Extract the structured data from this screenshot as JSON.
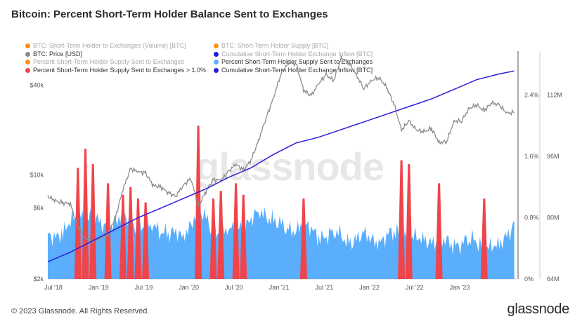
{
  "title": "Bitcoin: Percent Short-Term Holder Balance Sent to Exchanges",
  "watermark": "glassnode",
  "footer": {
    "copyright": "© 2023 Glassnode. All Rights Reserved.",
    "brand": "glassnode"
  },
  "legend": [
    {
      "label": "BTC: Short-Term Holder to Exchanges (Volume) [BTC]",
      "color": "#f7931a",
      "faded": true
    },
    {
      "label": "BTC: Short-Term Holder Supply [BTC]",
      "color": "#f7931a",
      "faded": true
    },
    {
      "label": "BTC: Price [USD]",
      "color": "#8c8c8c",
      "faded": false
    },
    {
      "label": "Cumulative Short-Term Holder Exchange Inflow [BTC]",
      "color": "#1d1de0",
      "faded": true
    },
    {
      "label": "Percent Short-Term Holder Supply Sent to Exchanges",
      "color": "#f7931a",
      "faded": true
    },
    {
      "label": "Percent Short-Term Holder Supply Sent to Exchanges",
      "color": "#5aaefc",
      "faded": false
    },
    {
      "label": "Percent Short-Term Holder Supply Sent to Exchanges > 1.0%",
      "color": "#f0444b",
      "faded": false
    },
    {
      "label": "Cumulative Short-Term Holder Exchange Inflow [BTC]",
      "color": "#2a1ed8",
      "faded": false
    }
  ],
  "chart_data": {
    "type": "area",
    "x_ticks": [
      "Jul '18",
      "Jan '19",
      "Jul '19",
      "Jan '20",
      "Jul '20",
      "Jan '21",
      "Jul '21",
      "Jan '22",
      "Jul '22",
      "Jan '23"
    ],
    "left_axis": {
      "label": "BTC: Price [USD]",
      "scale": "log",
      "ticks": [
        "$2k",
        "$6k",
        "$10k",
        "$40k"
      ]
    },
    "right_axis_pct": {
      "ticks": [
        "0%",
        "0.8%",
        "1.6%",
        "2.4%"
      ],
      "range": [
        0,
        3.0
      ]
    },
    "right_axis_cum": {
      "ticks": [
        "64M",
        "80M",
        "96M",
        "112M"
      ],
      "range": [
        64,
        124
      ]
    },
    "threshold_pct": 1.0,
    "series": [
      {
        "name": "BTC: Price [USD]",
        "color": "#8c8c8c",
        "x_dates": [
          "2018-07",
          "2018-08",
          "2018-09",
          "2018-10",
          "2018-11",
          "2018-12",
          "2019-01",
          "2019-02",
          "2019-03",
          "2019-04",
          "2019-05",
          "2019-06",
          "2019-07",
          "2019-08",
          "2019-09",
          "2019-10",
          "2019-11",
          "2019-12",
          "2020-01",
          "2020-02",
          "2020-03",
          "2020-04",
          "2020-05",
          "2020-06",
          "2020-07",
          "2020-08",
          "2020-09",
          "2020-10",
          "2020-11",
          "2020-12",
          "2021-01",
          "2021-02",
          "2021-03",
          "2021-04",
          "2021-05",
          "2021-06",
          "2021-07",
          "2021-08",
          "2021-09",
          "2021-10",
          "2021-11",
          "2021-12",
          "2022-01",
          "2022-02",
          "2022-03",
          "2022-04",
          "2022-05",
          "2022-06",
          "2022-07",
          "2022-08",
          "2022-09",
          "2022-10",
          "2022-11",
          "2022-12",
          "2023-01",
          "2023-02",
          "2023-03",
          "2023-04",
          "2023-05",
          "2023-06",
          "2023-07",
          "2023-08",
          "2023-09"
        ],
        "values": [
          7200,
          6700,
          6500,
          6400,
          4500,
          3700,
          3600,
          3800,
          4000,
          5200,
          8000,
          11000,
          10500,
          10300,
          8500,
          8300,
          7600,
          7200,
          8500,
          9500,
          6200,
          7700,
          9300,
          9200,
          10500,
          11800,
          10800,
          12500,
          17000,
          24000,
          33000,
          48000,
          57000,
          56000,
          37000,
          34000,
          41000,
          47000,
          43000,
          61000,
          57000,
          47000,
          38000,
          43000,
          45000,
          39000,
          30000,
          20000,
          23000,
          20000,
          19500,
          20500,
          16500,
          16700,
          23000,
          23000,
          28000,
          29500,
          27000,
          30500,
          29500,
          26000,
          26300
        ]
      },
      {
        "name": "Cumulative Short-Term Holder Exchange Inflow [BTC]",
        "color": "#2a1ed8",
        "unit": "M",
        "x_dates": [
          "2018-07",
          "2018-10",
          "2019-01",
          "2019-04",
          "2019-07",
          "2019-10",
          "2020-01",
          "2020-04",
          "2020-07",
          "2020-10",
          "2021-01",
          "2021-04",
          "2021-07",
          "2021-10",
          "2022-01",
          "2022-04",
          "2022-07",
          "2022-10",
          "2023-01",
          "2023-04",
          "2023-07",
          "2023-09"
        ],
        "values": [
          68.5,
          71,
          74,
          77,
          80,
          82.5,
          85,
          87.5,
          90.5,
          93,
          96.5,
          99.5,
          101,
          103,
          105,
          107,
          109,
          111,
          113.5,
          116,
          117.5,
          118.3
        ]
      },
      {
        "name": "Percent Short-Term Holder Supply Sent to Exchanges",
        "color": "#5aaefc",
        "unit": "%",
        "x_dates": [
          "2018-07",
          "2018-09",
          "2018-11",
          "2019-01",
          "2019-03",
          "2019-05",
          "2019-07",
          "2019-09",
          "2019-11",
          "2020-01",
          "2020-03",
          "2020-05",
          "2020-07",
          "2020-09",
          "2020-11",
          "2021-01",
          "2021-03",
          "2021-05",
          "2021-07",
          "2021-09",
          "2021-11",
          "2022-01",
          "2022-03",
          "2022-05",
          "2022-07",
          "2022-09",
          "2022-11",
          "2023-01",
          "2023-03",
          "2023-05",
          "2023-07",
          "2023-09"
        ],
        "values": [
          0.55,
          0.6,
          0.85,
          0.75,
          0.7,
          0.8,
          0.72,
          0.65,
          0.62,
          0.55,
          0.9,
          0.65,
          0.6,
          0.7,
          0.85,
          0.8,
          0.6,
          0.72,
          0.55,
          0.6,
          0.5,
          0.55,
          0.5,
          0.6,
          0.55,
          0.5,
          0.5,
          0.45,
          0.5,
          0.45,
          0.4,
          0.75
        ]
      },
      {
        "name": "Percent Short-Term Holder Supply Sent to Exchanges > 1.0%",
        "color": "#f0444b",
        "unit": "%",
        "x_dates": [
          "2018-11",
          "2018-12",
          "2019-01",
          "2019-03",
          "2019-05",
          "2019-06",
          "2019-07",
          "2019-08",
          "2020-03",
          "2020-05",
          "2020-06",
          "2020-08",
          "2020-09",
          "2021-05",
          "2022-06",
          "2022-07",
          "2022-11",
          "2023-05"
        ],
        "values": [
          1.45,
          1.7,
          1.5,
          1.25,
          1.1,
          1.2,
          1.05,
          1.0,
          2.0,
          1.05,
          1.15,
          1.25,
          1.1,
          1.05,
          1.55,
          1.5,
          1.25,
          1.05
        ]
      }
    ]
  }
}
